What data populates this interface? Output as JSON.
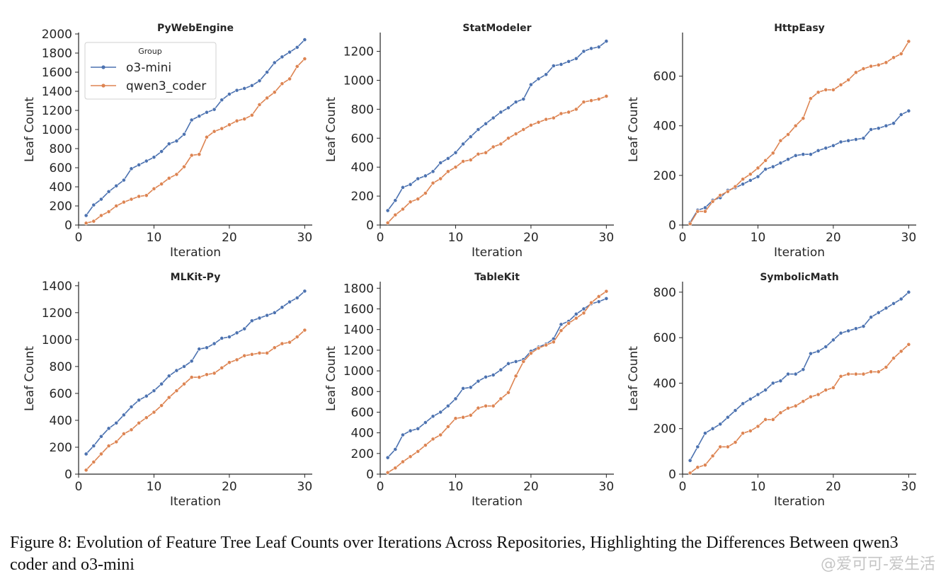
{
  "chart_data": [
    {
      "type": "line",
      "title": "PyWebEngine",
      "xlabel": "Iteration",
      "ylabel": "Leaf Count",
      "xlim": [
        0,
        31
      ],
      "ylim": [
        0,
        2000
      ],
      "xticks": [
        0,
        10,
        20,
        30
      ],
      "yticks": [
        0,
        200,
        400,
        600,
        800,
        1000,
        1200,
        1400,
        1600,
        1800,
        2000
      ],
      "legend": {
        "title": "Group",
        "position": "top-left"
      },
      "x": [
        1,
        2,
        3,
        4,
        5,
        6,
        7,
        8,
        9,
        10,
        11,
        12,
        13,
        14,
        15,
        16,
        17,
        18,
        19,
        20,
        21,
        22,
        23,
        24,
        25,
        26,
        27,
        28,
        29,
        30
      ],
      "series": [
        {
          "name": "o3-mini",
          "color": "#4c72b0",
          "values": [
            100,
            210,
            270,
            350,
            410,
            470,
            590,
            630,
            670,
            710,
            770,
            850,
            880,
            950,
            1100,
            1140,
            1180,
            1210,
            1310,
            1370,
            1410,
            1430,
            1460,
            1510,
            1600,
            1700,
            1760,
            1810,
            1860,
            1940
          ]
        },
        {
          "name": "qwen3_coder",
          "color": "#dd8452",
          "values": [
            20,
            40,
            100,
            140,
            200,
            240,
            270,
            300,
            310,
            380,
            430,
            490,
            530,
            610,
            730,
            740,
            920,
            980,
            1010,
            1050,
            1090,
            1110,
            1150,
            1260,
            1330,
            1390,
            1480,
            1530,
            1660,
            1740
          ]
        }
      ]
    },
    {
      "type": "line",
      "title": "StatModeler",
      "xlabel": "Iteration",
      "ylabel": "Leaf Count",
      "xlim": [
        0,
        31
      ],
      "ylim": [
        0,
        1320
      ],
      "xticks": [
        0,
        10,
        20,
        30
      ],
      "yticks": [
        0,
        200,
        400,
        600,
        800,
        1000,
        1200
      ],
      "x": [
        1,
        2,
        3,
        4,
        5,
        6,
        7,
        8,
        9,
        10,
        11,
        12,
        13,
        14,
        15,
        16,
        17,
        18,
        19,
        20,
        21,
        22,
        23,
        24,
        25,
        26,
        27,
        28,
        29,
        30
      ],
      "series": [
        {
          "name": "o3-mini",
          "color": "#4c72b0",
          "values": [
            100,
            170,
            260,
            280,
            320,
            340,
            370,
            430,
            460,
            500,
            560,
            610,
            660,
            700,
            740,
            780,
            810,
            850,
            870,
            970,
            1010,
            1040,
            1100,
            1110,
            1130,
            1150,
            1200,
            1220,
            1230,
            1270
          ]
        },
        {
          "name": "qwen3_coder",
          "color": "#dd8452",
          "values": [
            15,
            70,
            110,
            160,
            180,
            220,
            290,
            320,
            370,
            400,
            440,
            450,
            490,
            500,
            540,
            560,
            600,
            630,
            660,
            690,
            710,
            730,
            740,
            770,
            780,
            800,
            850,
            860,
            870,
            890
          ]
        }
      ]
    },
    {
      "type": "line",
      "title": "HttpEasy",
      "xlabel": "Iteration",
      "ylabel": "Leaf Count",
      "xlim": [
        0,
        31
      ],
      "ylim": [
        0,
        770
      ],
      "xticks": [
        0,
        10,
        20,
        30
      ],
      "yticks": [
        0,
        200,
        400,
        600
      ],
      "x": [
        1,
        2,
        3,
        4,
        5,
        6,
        7,
        8,
        9,
        10,
        11,
        12,
        13,
        14,
        15,
        16,
        17,
        18,
        19,
        20,
        21,
        22,
        23,
        24,
        25,
        26,
        27,
        28,
        29,
        30
      ],
      "series": [
        {
          "name": "o3-mini",
          "color": "#4c72b0",
          "values": [
            10,
            60,
            70,
            100,
            110,
            140,
            150,
            165,
            180,
            195,
            225,
            235,
            250,
            265,
            280,
            285,
            285,
            300,
            310,
            320,
            335,
            340,
            345,
            350,
            385,
            390,
            400,
            410,
            445,
            460
          ]
        },
        {
          "name": "qwen3_coder",
          "color": "#dd8452",
          "values": [
            5,
            55,
            55,
            95,
            120,
            135,
            155,
            185,
            205,
            230,
            260,
            290,
            340,
            365,
            400,
            430,
            510,
            535,
            545,
            545,
            565,
            585,
            615,
            630,
            640,
            645,
            655,
            675,
            690,
            740
          ]
        }
      ]
    },
    {
      "type": "line",
      "title": "MLKit-Py",
      "xlabel": "Iteration",
      "ylabel": "Leaf Count",
      "xlim": [
        0,
        31
      ],
      "ylim": [
        0,
        1420
      ],
      "xticks": [
        0,
        10,
        20,
        30
      ],
      "yticks": [
        0,
        200,
        400,
        600,
        800,
        1000,
        1200,
        1400
      ],
      "x": [
        1,
        2,
        3,
        4,
        5,
        6,
        7,
        8,
        9,
        10,
        11,
        12,
        13,
        14,
        15,
        16,
        17,
        18,
        19,
        20,
        21,
        22,
        23,
        24,
        25,
        26,
        27,
        28,
        29,
        30
      ],
      "series": [
        {
          "name": "o3-mini",
          "color": "#4c72b0",
          "values": [
            150,
            210,
            280,
            340,
            380,
            440,
            500,
            550,
            580,
            620,
            670,
            730,
            770,
            800,
            840,
            930,
            940,
            970,
            1010,
            1020,
            1050,
            1080,
            1140,
            1160,
            1180,
            1200,
            1240,
            1280,
            1310,
            1360
          ]
        },
        {
          "name": "qwen3_coder",
          "color": "#dd8452",
          "values": [
            30,
            90,
            150,
            210,
            240,
            300,
            330,
            380,
            420,
            460,
            510,
            570,
            620,
            670,
            720,
            720,
            740,
            750,
            790,
            830,
            850,
            880,
            890,
            900,
            900,
            940,
            970,
            980,
            1020,
            1070
          ]
        }
      ]
    },
    {
      "type": "line",
      "title": "TableKit",
      "xlabel": "Iteration",
      "ylabel": "Leaf Count",
      "xlim": [
        0,
        31
      ],
      "ylim": [
        0,
        1850
      ],
      "xticks": [
        0,
        10,
        20,
        30
      ],
      "yticks": [
        0,
        200,
        400,
        600,
        800,
        1000,
        1200,
        1400,
        1600,
        1800
      ],
      "x": [
        1,
        2,
        3,
        4,
        5,
        6,
        7,
        8,
        9,
        10,
        11,
        12,
        13,
        14,
        15,
        16,
        17,
        18,
        19,
        20,
        21,
        22,
        23,
        24,
        25,
        26,
        27,
        28,
        29,
        30
      ],
      "series": [
        {
          "name": "o3-mini",
          "color": "#4c72b0",
          "values": [
            160,
            240,
            380,
            420,
            440,
            500,
            560,
            600,
            660,
            730,
            830,
            840,
            900,
            940,
            960,
            1010,
            1070,
            1090,
            1110,
            1190,
            1230,
            1260,
            1310,
            1450,
            1480,
            1550,
            1600,
            1650,
            1670,
            1700
          ]
        },
        {
          "name": "qwen3_coder",
          "color": "#dd8452",
          "values": [
            15,
            60,
            120,
            170,
            220,
            280,
            340,
            380,
            460,
            540,
            550,
            570,
            640,
            660,
            660,
            730,
            790,
            950,
            1090,
            1170,
            1220,
            1250,
            1280,
            1390,
            1460,
            1510,
            1560,
            1660,
            1720,
            1770
          ]
        }
      ]
    },
    {
      "type": "line",
      "title": "SymbolicMath",
      "xlabel": "Iteration",
      "ylabel": "Leaf Count",
      "xlim": [
        0,
        31
      ],
      "ylim": [
        0,
        840
      ],
      "xticks": [
        0,
        10,
        20,
        30
      ],
      "yticks": [
        0,
        200,
        400,
        600,
        800
      ],
      "x": [
        1,
        2,
        3,
        4,
        5,
        6,
        7,
        8,
        9,
        10,
        11,
        12,
        13,
        14,
        15,
        16,
        17,
        18,
        19,
        20,
        21,
        22,
        23,
        24,
        25,
        26,
        27,
        28,
        29,
        30
      ],
      "series": [
        {
          "name": "o3-mini",
          "color": "#4c72b0",
          "values": [
            60,
            120,
            180,
            200,
            220,
            250,
            280,
            310,
            330,
            350,
            370,
            400,
            410,
            440,
            440,
            460,
            530,
            540,
            560,
            590,
            620,
            630,
            640,
            650,
            690,
            710,
            730,
            750,
            770,
            800
          ]
        },
        {
          "name": "qwen3_coder",
          "color": "#dd8452",
          "values": [
            5,
            30,
            40,
            80,
            120,
            120,
            140,
            180,
            190,
            210,
            240,
            240,
            270,
            290,
            300,
            320,
            340,
            350,
            370,
            380,
            430,
            440,
            440,
            440,
            450,
            450,
            470,
            510,
            540,
            570
          ]
        }
      ]
    }
  ],
  "caption": "Figure 8: Evolution of Feature Tree Leaf Counts over Iterations Across Repositories, Highlighting the Differences Between qwen3 coder and o3-mini",
  "watermark": "@爱可可-爱生活"
}
